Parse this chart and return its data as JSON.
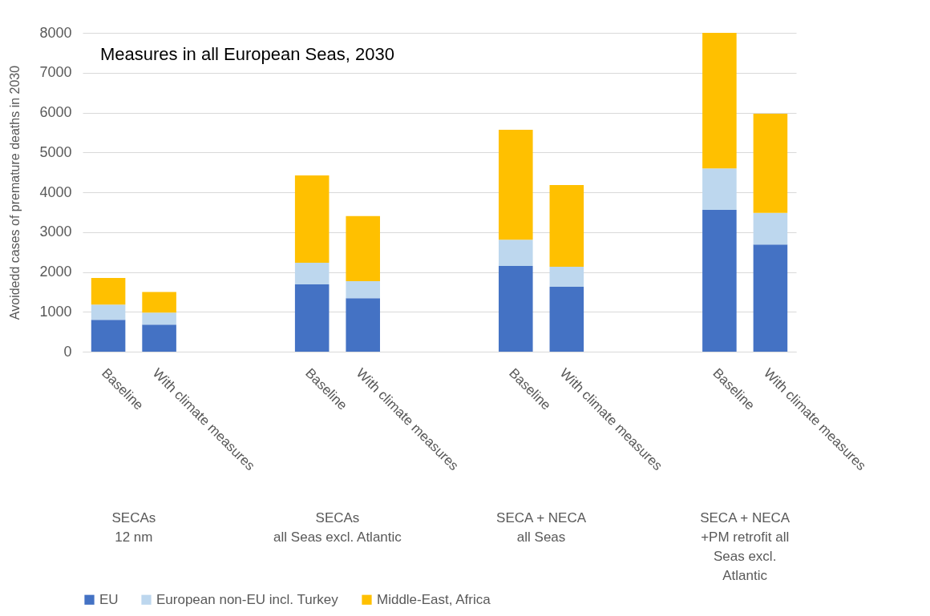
{
  "chart_data": {
    "type": "bar",
    "title": "Measures in all European Seas, 2030",
    "ylabel": "Avoidedd cases of premature deaths in 2030",
    "categories": [
      "Baseline",
      "With climate measures",
      null,
      null,
      "Baseline",
      "With climate measures",
      null,
      null,
      "Baseline",
      "With climate measures",
      null,
      null,
      "Baseline",
      "With climate measures"
    ],
    "stacked": true,
    "series": [
      {
        "name": "EU",
        "color": "#4472c4",
        "values": [
          800,
          680,
          null,
          null,
          1690,
          1340,
          null,
          null,
          2150,
          1630,
          null,
          null,
          3560,
          2690
        ]
      },
      {
        "name": "European non-EU incl. Turkey",
        "color": "#bdd7ee",
        "values": [
          380,
          300,
          null,
          null,
          540,
          430,
          null,
          null,
          660,
          500,
          null,
          null,
          1040,
          790
        ]
      },
      {
        "name": "Middle-East, Africa",
        "color": "#ffc000",
        "values": [
          670,
          520,
          null,
          null,
          2190,
          1630,
          null,
          null,
          2760,
          2050,
          null,
          null,
          3400,
          2490
        ]
      }
    ],
    "annotations": [
      "SECAs\n12 nm",
      "SECAs\nall Seas excl. Atlantic",
      "SECA + NECA\nall Seas",
      "SECA + NECA\n+PM retrofit all\nSeas excl.\nAtlantic"
    ],
    "ylim": [
      0,
      8000
    ],
    "yticks": [
      0,
      1000,
      2000,
      3000,
      4000,
      5000,
      6000,
      7000,
      8000
    ],
    "grid": "y",
    "legend": "bottom"
  }
}
